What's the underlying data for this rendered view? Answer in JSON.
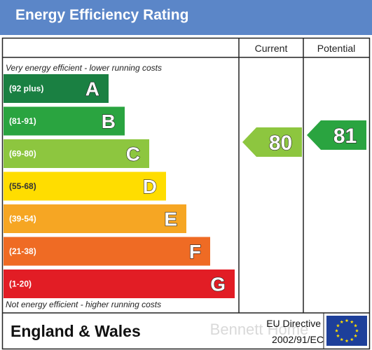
{
  "header": {
    "title": "Energy Efficiency Rating"
  },
  "columns": {
    "current": "Current",
    "potential": "Potential"
  },
  "notes": {
    "top": "Very energy efficient - lower running costs",
    "bottom": "Not energy efficient - higher running costs"
  },
  "footer": {
    "region": "England & Wales",
    "directive_line1": "EU Directive",
    "directive_line2": "2002/91/EC"
  },
  "watermark": "Bennett Home",
  "chart_data": {
    "type": "bar",
    "title": "Energy Efficiency Rating",
    "bands": [
      {
        "letter": "A",
        "range": "(92 plus)",
        "color": "#1a8042"
      },
      {
        "letter": "B",
        "range": "(81-91)",
        "color": "#2aa440"
      },
      {
        "letter": "C",
        "range": "(69-80)",
        "color": "#8dc63f"
      },
      {
        "letter": "D",
        "range": "(55-68)",
        "color": "#ffdd00"
      },
      {
        "letter": "E",
        "range": "(39-54)",
        "color": "#f6a623"
      },
      {
        "letter": "F",
        "range": "(21-38)",
        "color": "#ef6b24"
      },
      {
        "letter": "G",
        "range": "(1-20)",
        "color": "#e21d25"
      }
    ],
    "current": {
      "value": 80,
      "band": "C",
      "color": "#8dc63f"
    },
    "potential": {
      "value": 81,
      "band": "B",
      "color": "#2aa440"
    }
  }
}
